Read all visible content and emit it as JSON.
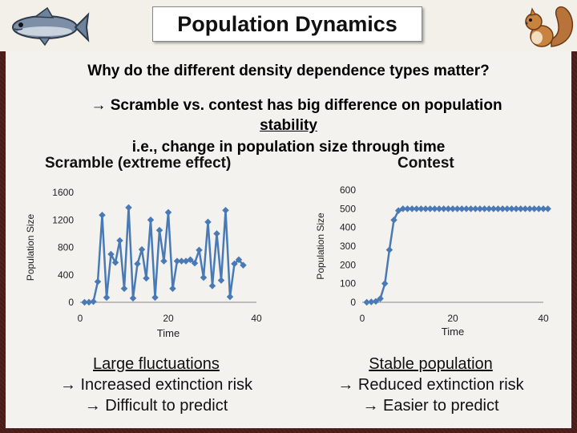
{
  "title": "Population Dynamics",
  "question": {
    "line1": "Why do the different density dependence types matter?",
    "line2": "→ Scramble vs. contest has big difference on population",
    "line3": "stability",
    "line4": "i.e., change in population size through time"
  },
  "chart_data": [
    {
      "type": "line",
      "title": "Scramble (extreme effect)",
      "xlabel": "Time",
      "ylabel": "Population Size",
      "xlim": [
        0,
        40
      ],
      "ylim": [
        0,
        1600
      ],
      "xticks": [
        0,
        20,
        40
      ],
      "yticks": [
        0,
        400,
        800,
        1200,
        1600
      ],
      "color": "#4a7ab5",
      "x": [
        1,
        2,
        3,
        4,
        5,
        6,
        7,
        8,
        9,
        10,
        11,
        12,
        13,
        14,
        15,
        16,
        17,
        18,
        19,
        20,
        21,
        22,
        23,
        24,
        25,
        26,
        27,
        28,
        29,
        30,
        31,
        32,
        33,
        34,
        35,
        36,
        37,
        38,
        39
      ],
      "values": [
        0,
        2,
        10,
        300,
        1270,
        70,
        700,
        580,
        900,
        200,
        1380,
        60,
        560,
        770,
        350,
        1200,
        70,
        1050,
        600,
        1310,
        200,
        600,
        600,
        600,
        620,
        570,
        760,
        360,
        1170,
        240,
        1000,
        320,
        1340,
        80,
        560,
        620,
        540,
        null,
        null
      ]
    },
    {
      "type": "line",
      "title": "Contest",
      "xlabel": "Time",
      "ylabel": "Population Size",
      "xlim": [
        0,
        40
      ],
      "ylim": [
        0,
        600
      ],
      "xticks": [
        0,
        20,
        40
      ],
      "yticks": [
        0,
        100,
        200,
        300,
        400,
        500,
        600
      ],
      "color": "#4a7ab5",
      "x": [
        1,
        2,
        3,
        4,
        5,
        6,
        7,
        8,
        9,
        10,
        11,
        12,
        13,
        14,
        15,
        16,
        17,
        18,
        19,
        20,
        21,
        22,
        23,
        24,
        25,
        26,
        27,
        28,
        29,
        30,
        31,
        32,
        33,
        34,
        35,
        36,
        37,
        38,
        39,
        40,
        41
      ],
      "values": [
        0,
        2,
        5,
        20,
        100,
        280,
        440,
        490,
        500,
        500,
        500,
        500,
        500,
        500,
        500,
        500,
        500,
        500,
        500,
        500,
        500,
        500,
        500,
        500,
        500,
        500,
        500,
        500,
        500,
        500,
        500,
        500,
        500,
        500,
        500,
        500,
        500,
        500,
        500,
        500,
        500
      ]
    }
  ],
  "captions": {
    "left": {
      "line1": "Large fluctuations",
      "line2": "→ Increased extinction risk",
      "line3": "→ Difficult to predict"
    },
    "right": {
      "line1": "Stable population",
      "line2": "→ Reduced extinction risk",
      "line3": "→ Easier to predict"
    }
  },
  "icons": {
    "fish": "fish-icon",
    "squirrel": "squirrel-icon"
  }
}
